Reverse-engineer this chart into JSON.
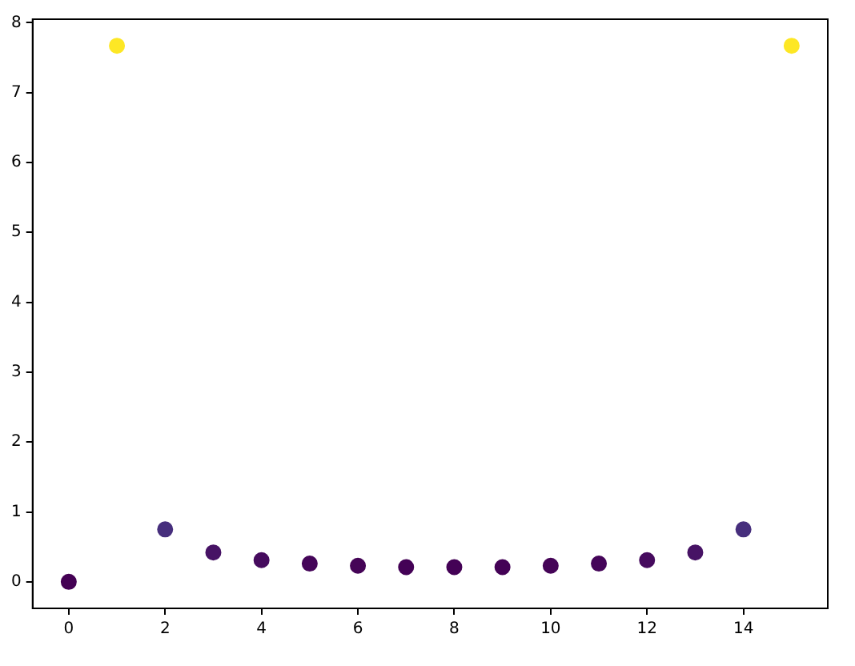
{
  "chart_data": {
    "type": "scatter",
    "x": [
      0,
      1,
      2,
      3,
      4,
      5,
      6,
      7,
      8,
      9,
      10,
      11,
      12,
      13,
      14,
      15
    ],
    "values": [
      0,
      7.67,
      0.75,
      0.42,
      0.31,
      0.26,
      0.23,
      0.21,
      0.21,
      0.21,
      0.23,
      0.26,
      0.31,
      0.42,
      0.75,
      7.67
    ],
    "colors": [
      "#440154",
      "#fde725",
      "#472f7d",
      "#471365",
      "#460b5e",
      "#450559",
      "#450457",
      "#440256",
      "#440256",
      "#440256",
      "#450457",
      "#450559",
      "#460b5e",
      "#471365",
      "#472f7d",
      "#fde725"
    ],
    "xlim": [
      -0.75,
      15.75
    ],
    "xticks": [
      0,
      2,
      4,
      6,
      8,
      10,
      12,
      14
    ],
    "ylim": [
      -0.38,
      8.05
    ],
    "yticks": [
      0,
      1,
      2,
      3,
      4,
      5,
      6,
      7,
      8
    ],
    "marker": "circle",
    "grid": false,
    "legend": false
  }
}
